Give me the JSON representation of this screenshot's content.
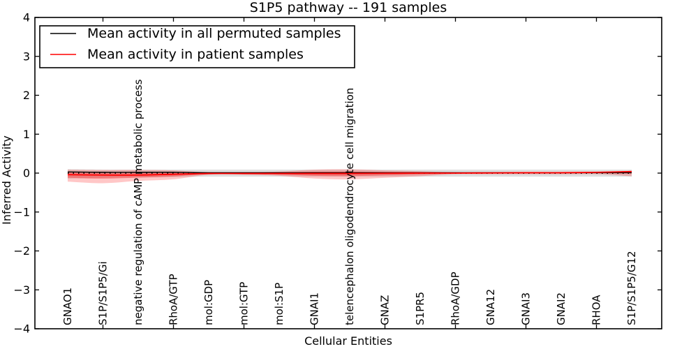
{
  "figure": {
    "background": "#ffffff",
    "accent_red": "#ff0000",
    "line_black": "#000000"
  },
  "chart_data": {
    "type": "line",
    "title": "S1P5 pathway -- 191 samples",
    "xlabel": "Cellular Entities",
    "ylabel": "Inferred Activity",
    "ylim": [
      -4,
      4
    ],
    "yticks": [
      4,
      3,
      2,
      1,
      0,
      -1,
      -2,
      -3,
      -4
    ],
    "ytick_labels": [
      "4",
      "3",
      "2",
      "1",
      "0",
      "−1",
      "−2",
      "−3",
      "−4"
    ],
    "grid": false,
    "legend_position": "upper left",
    "categories": [
      "GNAO1",
      "S1P/S1P5/Gi",
      "negative regulation of cAMP metabolic process",
      "RhoA/GTP",
      "mol:GDP",
      "mol:GTP",
      "mol:S1P",
      "GNAI1",
      "telencephalon oligodendrocyte cell migration",
      "GNAZ",
      "S1PR5",
      "RhoA/GDP",
      "GNA12",
      "GNAI3",
      "GNAI2",
      "RHOA",
      "S1P/S1P5/G12"
    ],
    "series": [
      {
        "name": "Mean activity in all permuted samples",
        "color": "#000000",
        "band_color": "#999999",
        "band_opacity": 0.32,
        "values": [
          0.03,
          0.02,
          0.02,
          0.02,
          0.01,
          0.01,
          0.01,
          0.01,
          0.01,
          0.01,
          0.01,
          0.01,
          0.01,
          0.01,
          0.01,
          0.01,
          0.01
        ],
        "band_upper": [
          0.1,
          0.09,
          0.09,
          0.09,
          0.09,
          0.09,
          0.09,
          0.09,
          0.09,
          0.09,
          0.09,
          0.09,
          0.09,
          0.09,
          0.09,
          0.09,
          0.09
        ],
        "band_lower": [
          -0.14,
          -0.12,
          -0.11,
          -0.1,
          -0.09,
          -0.09,
          -0.09,
          -0.09,
          -0.09,
          -0.09,
          -0.09,
          -0.09,
          -0.09,
          -0.09,
          -0.09,
          -0.09,
          -0.09
        ]
      },
      {
        "name": "Mean activity in patient samples",
        "color": "#ff0000",
        "band_color": "#ff0000",
        "band_opacity": 0.22,
        "values": [
          -0.04,
          -0.05,
          -0.05,
          -0.03,
          -0.01,
          -0.01,
          -0.01,
          -0.01,
          -0.01,
          -0.005,
          0.0,
          0.0,
          0.005,
          0.01,
          0.01,
          0.02,
          0.04
        ],
        "band_upper": [
          0.09,
          0.08,
          0.08,
          0.07,
          0.02,
          0.02,
          0.04,
          0.09,
          0.1,
          0.07,
          0.05,
          0.02,
          0.02,
          0.02,
          0.02,
          0.02,
          0.06
        ],
        "band_lower": [
          -0.22,
          -0.26,
          -0.2,
          -0.16,
          -0.04,
          -0.04,
          -0.07,
          -0.14,
          -0.16,
          -0.12,
          -0.08,
          -0.03,
          -0.03,
          -0.03,
          -0.03,
          -0.03,
          -0.08
        ]
      }
    ],
    "zero_line": {
      "value": 0,
      "style": "dotted",
      "color": "#000000"
    }
  }
}
